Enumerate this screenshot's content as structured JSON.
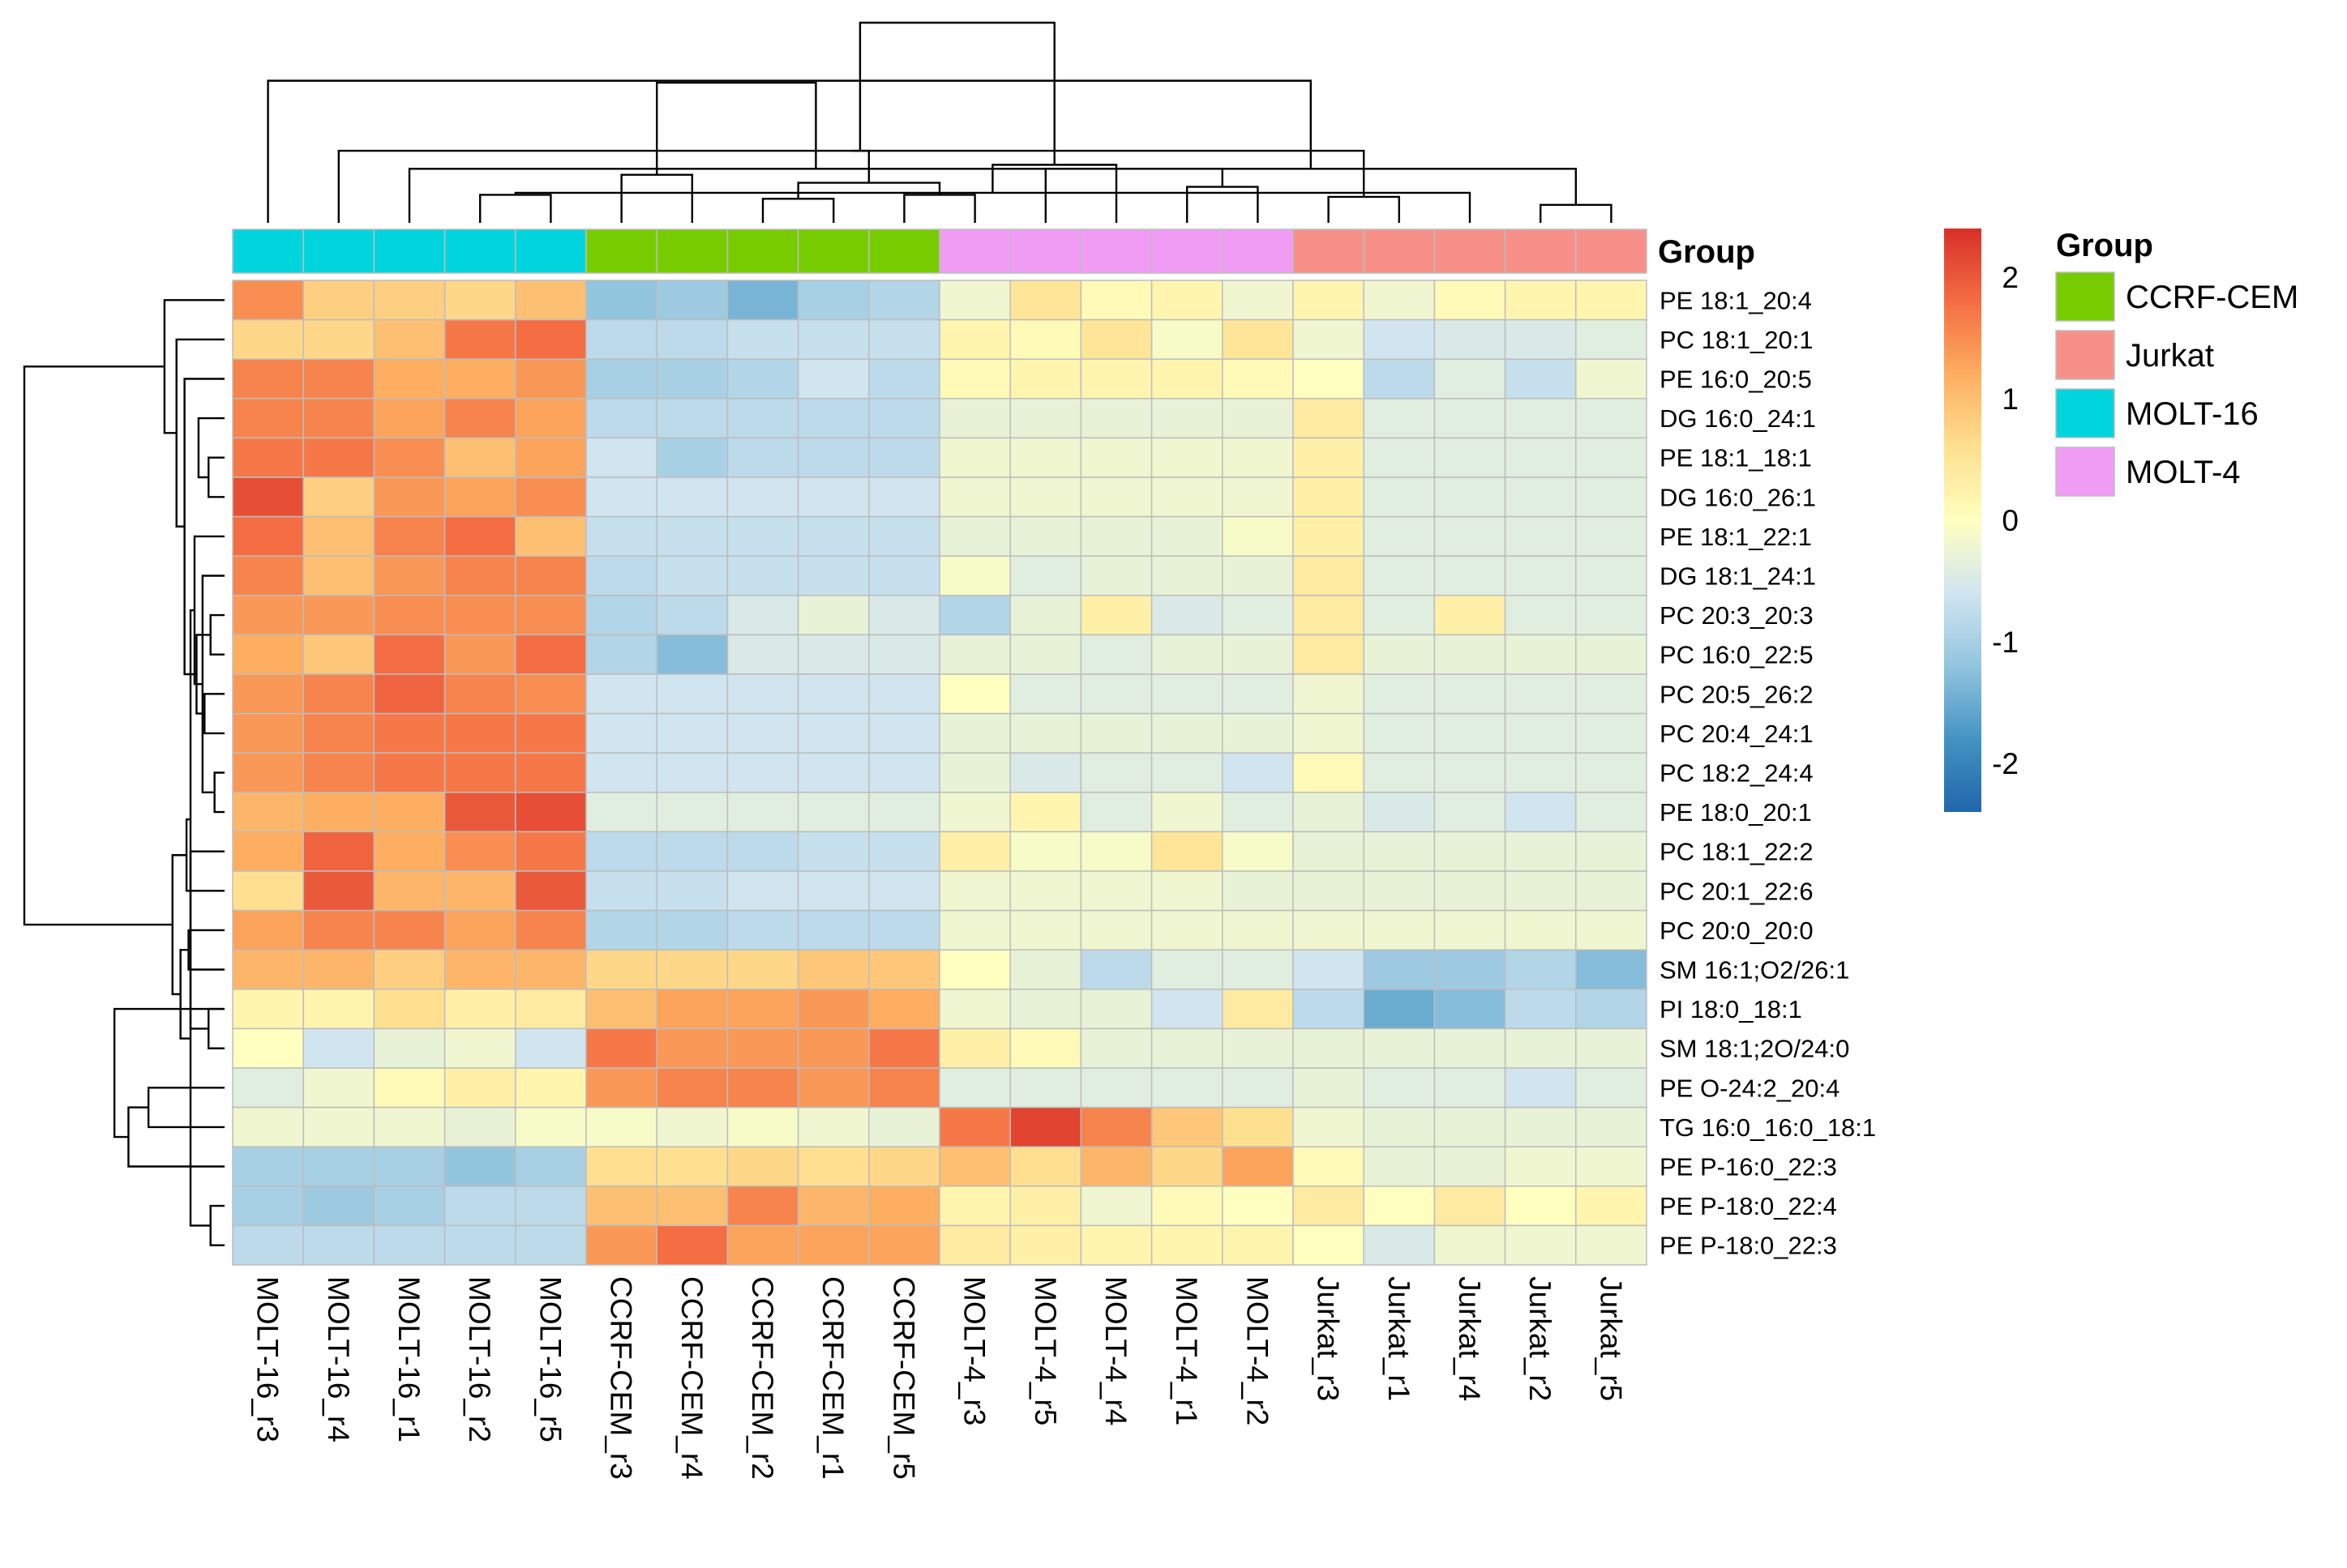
{
  "chart_data": {
    "type": "heatmap",
    "title": "",
    "columns": [
      "MOLT-16_r3",
      "MOLT-16_r4",
      "MOLT-16_r1",
      "MOLT-16_r2",
      "MOLT-16_r5",
      "CCRF-CEM_r3",
      "CCRF-CEM_r4",
      "CCRF-CEM_r2",
      "CCRF-CEM_r1",
      "CCRF-CEM_r5",
      "MOLT-4_r3",
      "MOLT-4_r5",
      "MOLT-4_r4",
      "MOLT-4_r1",
      "MOLT-4_r2",
      "Jurkat_r3",
      "Jurkat_r1",
      "Jurkat_r4",
      "Jurkat_r2",
      "Jurkat_r5"
    ],
    "column_groups": [
      "MOLT-16",
      "MOLT-16",
      "MOLT-16",
      "MOLT-16",
      "MOLT-16",
      "CCRF-CEM",
      "CCRF-CEM",
      "CCRF-CEM",
      "CCRF-CEM",
      "CCRF-CEM",
      "MOLT-4",
      "MOLT-4",
      "MOLT-4",
      "MOLT-4",
      "MOLT-4",
      "Jurkat",
      "Jurkat",
      "Jurkat",
      "Jurkat",
      "Jurkat"
    ],
    "rows": [
      "PE 18:1_20:4",
      "PC 18:1_20:1",
      "PE 16:0_20:5",
      "DG 16:0_24:1",
      "PE 18:1_18:1",
      "DG 16:0_26:1",
      "PE 18:1_22:1",
      "DG 18:1_24:1",
      "PC 20:3_20:3",
      "PC 16:0_22:5",
      "PC 20:5_26:2",
      "PC 20:4_24:1",
      "PC 18:2_24:4",
      "PE 18:0_20:1",
      "PC 18:1_22:2",
      "PC 20:1_22:6",
      "PC 20:0_20:0",
      "SM 16:1;O2/26:1",
      "PI 18:0_18:1",
      "SM 18:1;2O/24:0",
      "PE O-24:2_20:4",
      "TG 16:0_16:0_18:1",
      "PE P-16:0_22:3",
      "PE P-18:0_22:4",
      "PE P-18:0_22:3"
    ],
    "values": [
      [
        1.5,
        0.8,
        0.8,
        0.7,
        1.0,
        -1.2,
        -1.1,
        -1.4,
        -1.0,
        -0.9,
        -0.2,
        0.5,
        0.1,
        0.2,
        -0.2,
        0.2,
        -0.2,
        0.1,
        0.2,
        0.2
      ],
      [
        0.7,
        0.7,
        1.0,
        1.7,
        1.8,
        -0.8,
        -0.8,
        -0.7,
        -0.7,
        -0.7,
        0.2,
        0.1,
        0.5,
        -0.1,
        0.5,
        -0.2,
        -0.6,
        -0.5,
        -0.5,
        -0.4
      ],
      [
        1.6,
        1.6,
        1.2,
        1.2,
        1.4,
        -1.0,
        -1.0,
        -0.9,
        -0.6,
        -0.8,
        0.1,
        0.2,
        0.2,
        0.2,
        0.1,
        0.0,
        -0.8,
        -0.4,
        -0.7,
        -0.2
      ],
      [
        1.6,
        1.6,
        1.3,
        1.6,
        1.3,
        -0.8,
        -0.8,
        -0.8,
        -0.8,
        -0.8,
        -0.3,
        -0.3,
        -0.3,
        -0.3,
        -0.3,
        0.4,
        -0.4,
        -0.4,
        -0.4,
        -0.4
      ],
      [
        1.7,
        1.7,
        1.5,
        1.0,
        1.3,
        -0.6,
        -1.0,
        -0.8,
        -0.8,
        -0.8,
        -0.2,
        -0.2,
        -0.2,
        -0.2,
        -0.2,
        0.3,
        -0.4,
        -0.4,
        -0.4,
        -0.4
      ],
      [
        2.1,
        0.8,
        1.4,
        1.3,
        1.5,
        -0.6,
        -0.6,
        -0.6,
        -0.6,
        -0.6,
        -0.2,
        -0.2,
        -0.2,
        -0.2,
        -0.2,
        0.3,
        -0.4,
        -0.4,
        -0.4,
        -0.4
      ],
      [
        1.8,
        1.0,
        1.6,
        1.8,
        1.0,
        -0.7,
        -0.7,
        -0.7,
        -0.7,
        -0.7,
        -0.3,
        -0.3,
        -0.3,
        -0.3,
        -0.1,
        0.3,
        -0.4,
        -0.4,
        -0.4,
        -0.4
      ],
      [
        1.6,
        1.0,
        1.4,
        1.6,
        1.6,
        -0.8,
        -0.7,
        -0.7,
        -0.7,
        -0.7,
        -0.1,
        -0.4,
        -0.3,
        -0.3,
        -0.3,
        0.4,
        -0.4,
        -0.4,
        -0.4,
        -0.4
      ],
      [
        1.4,
        1.4,
        1.5,
        1.5,
        1.5,
        -0.9,
        -0.8,
        -0.5,
        -0.3,
        -0.5,
        -0.9,
        -0.3,
        0.3,
        -0.5,
        -0.4,
        0.4,
        -0.4,
        0.3,
        -0.4,
        -0.4
      ],
      [
        1.2,
        0.9,
        1.8,
        1.4,
        1.8,
        -0.9,
        -1.3,
        -0.5,
        -0.5,
        -0.5,
        -0.3,
        -0.3,
        -0.4,
        -0.3,
        -0.3,
        0.4,
        -0.3,
        -0.3,
        -0.3,
        -0.3
      ],
      [
        1.4,
        1.6,
        1.9,
        1.6,
        1.5,
        -0.6,
        -0.6,
        -0.6,
        -0.6,
        -0.6,
        0.0,
        -0.4,
        -0.4,
        -0.4,
        -0.4,
        -0.2,
        -0.4,
        -0.4,
        -0.4,
        -0.4
      ],
      [
        1.4,
        1.6,
        1.7,
        1.7,
        1.7,
        -0.6,
        -0.6,
        -0.6,
        -0.6,
        -0.6,
        -0.3,
        -0.3,
        -0.3,
        -0.3,
        -0.3,
        -0.2,
        -0.4,
        -0.4,
        -0.4,
        -0.4
      ],
      [
        1.4,
        1.6,
        1.7,
        1.7,
        1.7,
        -0.6,
        -0.6,
        -0.6,
        -0.6,
        -0.6,
        -0.3,
        -0.5,
        -0.4,
        -0.4,
        -0.6,
        0.1,
        -0.4,
        -0.4,
        -0.4,
        -0.4
      ],
      [
        1.1,
        1.2,
        1.2,
        2.0,
        2.1,
        -0.4,
        -0.4,
        -0.4,
        -0.4,
        -0.4,
        -0.2,
        0.2,
        -0.4,
        -0.2,
        -0.4,
        -0.3,
        -0.5,
        -0.4,
        -0.6,
        -0.4
      ],
      [
        1.2,
        1.9,
        1.2,
        1.5,
        1.7,
        -0.8,
        -0.8,
        -0.8,
        -0.7,
        -0.7,
        0.3,
        -0.1,
        -0.1,
        0.5,
        -0.1,
        -0.3,
        -0.3,
        -0.3,
        -0.3,
        -0.3
      ],
      [
        0.6,
        2.0,
        1.1,
        1.1,
        2.0,
        -0.7,
        -0.7,
        -0.6,
        -0.6,
        -0.6,
        -0.2,
        -0.2,
        -0.2,
        -0.2,
        -0.3,
        -0.3,
        -0.3,
        -0.3,
        -0.3,
        -0.3
      ],
      [
        1.3,
        1.6,
        1.6,
        1.3,
        1.6,
        -0.9,
        -0.9,
        -0.8,
        -0.8,
        -0.8,
        -0.2,
        -0.2,
        -0.2,
        -0.2,
        -0.2,
        -0.2,
        -0.2,
        -0.2,
        -0.2,
        -0.2
      ],
      [
        1.1,
        1.1,
        0.8,
        1.1,
        1.1,
        0.7,
        0.7,
        0.7,
        0.9,
        0.9,
        0.0,
        -0.3,
        -0.8,
        -0.4,
        -0.4,
        -0.6,
        -1.1,
        -1.1,
        -0.9,
        -1.3
      ],
      [
        0.2,
        0.2,
        0.6,
        0.3,
        0.4,
        1.0,
        1.3,
        1.3,
        1.4,
        1.2,
        -0.2,
        -0.3,
        -0.3,
        -0.6,
        0.4,
        -0.8,
        -1.5,
        -1.3,
        -0.8,
        -0.9
      ],
      [
        0.0,
        -0.6,
        -0.3,
        -0.2,
        -0.6,
        1.7,
        1.4,
        1.4,
        1.4,
        1.7,
        0.3,
        0.1,
        -0.3,
        -0.3,
        -0.3,
        -0.3,
        -0.3,
        -0.3,
        -0.3,
        -0.3
      ],
      [
        -0.4,
        -0.2,
        0.1,
        0.3,
        0.2,
        1.4,
        1.6,
        1.6,
        1.4,
        1.6,
        -0.4,
        -0.4,
        -0.4,
        -0.4,
        -0.4,
        -0.3,
        -0.4,
        -0.4,
        -0.6,
        -0.4
      ],
      [
        -0.2,
        -0.2,
        -0.2,
        -0.3,
        -0.1,
        -0.1,
        -0.2,
        -0.1,
        -0.2,
        -0.3,
        1.7,
        2.2,
        1.6,
        0.9,
        0.6,
        -0.2,
        -0.3,
        -0.3,
        -0.3,
        -0.3
      ],
      [
        -1.0,
        -1.0,
        -1.0,
        -1.2,
        -1.0,
        0.6,
        0.6,
        0.7,
        0.6,
        0.7,
        1.0,
        0.6,
        1.1,
        0.7,
        1.3,
        0.1,
        -0.3,
        -0.3,
        -0.2,
        -0.2
      ],
      [
        -1.0,
        -1.1,
        -1.0,
        -0.8,
        -0.8,
        1.0,
        1.0,
        1.6,
        1.1,
        1.2,
        0.2,
        0.3,
        -0.2,
        0.1,
        0.0,
        0.4,
        0.0,
        0.4,
        0.0,
        0.2
      ],
      [
        -0.8,
        -0.8,
        -0.8,
        -0.8,
        -0.8,
        1.4,
        1.8,
        1.3,
        1.3,
        1.3,
        0.4,
        0.3,
        0.2,
        0.2,
        0.2,
        0.0,
        -0.5,
        -0.2,
        -0.2,
        -0.2
      ]
    ],
    "color_scale": {
      "ticks": [
        2,
        1,
        0,
        -1,
        -2
      ],
      "range": [
        -2.4,
        2.4
      ],
      "stops": [
        "#2166ac",
        "#4393c3",
        "#92c5de",
        "#d1e5f0",
        "#ffffbf",
        "#fee090",
        "#fdae61",
        "#f46d43",
        "#d73027"
      ]
    },
    "legend": {
      "title": "Group",
      "items": [
        {
          "label": "CCRF-CEM",
          "color": "#77cc00"
        },
        {
          "label": "Jurkat",
          "color": "#f8908a"
        },
        {
          "label": "MOLT-16",
          "color": "#00d5de"
        },
        {
          "label": "MOLT-4",
          "color": "#f09cf5"
        }
      ]
    },
    "annotation_title": "Group",
    "column_dendrogram": [
      [
        4,
        3,
        0.14
      ],
      [
        8,
        7,
        0.12
      ],
      [
        9,
        10,
        0.14
      ],
      [
        13,
        14,
        0.18
      ],
      [
        15,
        16,
        0.13
      ],
      [
        19,
        18,
        0.09
      ],
      [
        17,
        20,
        0.15
      ],
      [
        21,
        22,
        0.2
      ],
      [
        2,
        23,
        0.27
      ],
      [
        1,
        24,
        0.36
      ],
      [
        5,
        6,
        0.24
      ],
      [
        25,
        11,
        0.27
      ],
      [
        12,
        26,
        0.29
      ],
      [
        29,
        27,
        0.36
      ],
      [
        30,
        28,
        0.7
      ],
      [
        31,
        0,
        0.71
      ],
      [
        32,
        33,
        1.0
      ]
    ],
    "row_dendrogram": [
      [
        12,
        13,
        0.05
      ],
      [
        4,
        5,
        0.08
      ],
      [
        8,
        9,
        0.07
      ],
      [
        10,
        11,
        0.1
      ],
      [
        18,
        19,
        0.08
      ],
      [
        23,
        24,
        0.07
      ],
      [
        7,
        25,
        0.11
      ],
      [
        3,
        26,
        0.13
      ],
      [
        6,
        31,
        0.15
      ],
      [
        27,
        28,
        0.14
      ],
      [
        33,
        29,
        0.17
      ],
      [
        17,
        16,
        0.18
      ],
      [
        14,
        30,
        0.17
      ],
      [
        20,
        21,
        0.38
      ],
      [
        22,
        38,
        0.48
      ],
      [
        34,
        2,
        0.2
      ],
      [
        15,
        35,
        0.19
      ],
      [
        36,
        37,
        0.22
      ],
      [
        1,
        40,
        0.24
      ],
      [
        41,
        42,
        0.26
      ],
      [
        43,
        0,
        0.3
      ],
      [
        39,
        18,
        0.55
      ],
      [
        45,
        44,
        1.0
      ]
    ]
  }
}
